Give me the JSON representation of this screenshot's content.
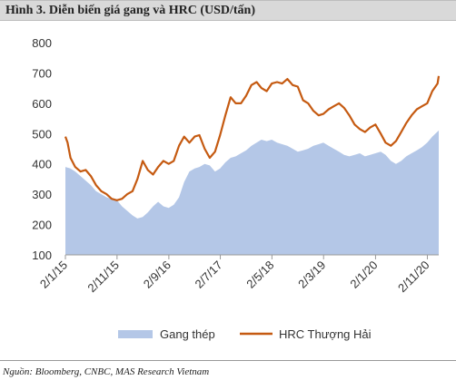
{
  "title": "Hình 3. Diễn biến giá gang và HRC (USD/tấn)",
  "source": "Nguồn: Bloomberg, CNBC, MAS Research Vietnam",
  "colors": {
    "gang": "#b4c7e7",
    "hrc": "#c55a11",
    "axis": "#999999"
  },
  "chart_data": {
    "type": "area",
    "title": "",
    "xlabel": "",
    "ylabel": "",
    "ylim": [
      100,
      800
    ],
    "yticks": [
      100,
      200,
      300,
      400,
      500,
      600,
      700,
      800
    ],
    "grid": false,
    "legend_position": "bottom",
    "x_ticks": [
      "2/1/15",
      "2/11/15",
      "2/9/16",
      "2/7/17",
      "2/5/18",
      "2/3/19",
      "2/1/20",
      "2/11/20"
    ],
    "x_tick_positions": [
      "2015-01-02",
      "2015-11-02",
      "2016-09-02",
      "2017-07-02",
      "2018-05-02",
      "2019-03-02",
      "2020-01-02",
      "2020-11-02"
    ],
    "x_range": [
      "2015-01-02",
      "2021-01-08"
    ],
    "series": [
      {
        "name": "Gang thép",
        "type": "area",
        "points": [
          [
            "2015-01-02",
            390
          ],
          [
            "2015-02-01",
            385
          ],
          [
            "2015-03-01",
            375
          ],
          [
            "2015-04-01",
            360
          ],
          [
            "2015-05-01",
            345
          ],
          [
            "2015-06-01",
            330
          ],
          [
            "2015-07-01",
            310
          ],
          [
            "2015-08-01",
            300
          ],
          [
            "2015-09-01",
            290
          ],
          [
            "2015-10-01",
            285
          ],
          [
            "2015-11-01",
            280
          ],
          [
            "2015-12-01",
            260
          ],
          [
            "2016-01-01",
            245
          ],
          [
            "2016-02-01",
            230
          ],
          [
            "2016-03-01",
            220
          ],
          [
            "2016-04-01",
            225
          ],
          [
            "2016-05-01",
            240
          ],
          [
            "2016-06-01",
            260
          ],
          [
            "2016-07-01",
            275
          ],
          [
            "2016-08-01",
            260
          ],
          [
            "2016-09-01",
            255
          ],
          [
            "2016-10-01",
            265
          ],
          [
            "2016-11-01",
            290
          ],
          [
            "2016-12-01",
            340
          ],
          [
            "2017-01-01",
            375
          ],
          [
            "2017-02-01",
            385
          ],
          [
            "2017-03-01",
            390
          ],
          [
            "2017-04-01",
            400
          ],
          [
            "2017-05-01",
            395
          ],
          [
            "2017-06-01",
            375
          ],
          [
            "2017-07-01",
            385
          ],
          [
            "2017-08-01",
            405
          ],
          [
            "2017-09-01",
            420
          ],
          [
            "2017-10-01",
            425
          ],
          [
            "2017-11-01",
            435
          ],
          [
            "2017-12-01",
            445
          ],
          [
            "2018-01-01",
            460
          ],
          [
            "2018-02-01",
            470
          ],
          [
            "2018-03-01",
            480
          ],
          [
            "2018-04-01",
            475
          ],
          [
            "2018-05-01",
            480
          ],
          [
            "2018-06-01",
            470
          ],
          [
            "2018-07-01",
            465
          ],
          [
            "2018-08-01",
            460
          ],
          [
            "2018-09-01",
            450
          ],
          [
            "2018-10-01",
            440
          ],
          [
            "2018-11-01",
            445
          ],
          [
            "2018-12-01",
            450
          ],
          [
            "2019-01-01",
            460
          ],
          [
            "2019-02-01",
            465
          ],
          [
            "2019-03-01",
            470
          ],
          [
            "2019-04-01",
            460
          ],
          [
            "2019-05-01",
            450
          ],
          [
            "2019-06-01",
            440
          ],
          [
            "2019-07-01",
            430
          ],
          [
            "2019-08-01",
            425
          ],
          [
            "2019-09-01",
            430
          ],
          [
            "2019-10-01",
            435
          ],
          [
            "2019-11-01",
            425
          ],
          [
            "2019-12-01",
            430
          ],
          [
            "2020-01-01",
            435
          ],
          [
            "2020-02-01",
            440
          ],
          [
            "2020-03-01",
            430
          ],
          [
            "2020-04-01",
            410
          ],
          [
            "2020-05-01",
            400
          ],
          [
            "2020-06-01",
            410
          ],
          [
            "2020-07-01",
            425
          ],
          [
            "2020-08-01",
            435
          ],
          [
            "2020-09-01",
            445
          ],
          [
            "2020-10-01",
            455
          ],
          [
            "2020-11-01",
            470
          ],
          [
            "2020-12-01",
            490
          ],
          [
            "2021-01-08",
            510
          ]
        ]
      },
      {
        "name": "HRC Thượng Hải",
        "type": "line",
        "points": [
          [
            "2015-01-02",
            490
          ],
          [
            "2015-01-15",
            470
          ],
          [
            "2015-02-01",
            420
          ],
          [
            "2015-03-01",
            390
          ],
          [
            "2015-04-01",
            375
          ],
          [
            "2015-05-01",
            380
          ],
          [
            "2015-06-01",
            360
          ],
          [
            "2015-07-01",
            330
          ],
          [
            "2015-08-01",
            310
          ],
          [
            "2015-09-01",
            300
          ],
          [
            "2015-10-01",
            285
          ],
          [
            "2015-11-01",
            280
          ],
          [
            "2015-12-01",
            285
          ],
          [
            "2016-01-01",
            300
          ],
          [
            "2016-02-01",
            310
          ],
          [
            "2016-03-01",
            350
          ],
          [
            "2016-04-01",
            410
          ],
          [
            "2016-05-01",
            380
          ],
          [
            "2016-06-01",
            365
          ],
          [
            "2016-07-01",
            390
          ],
          [
            "2016-08-01",
            410
          ],
          [
            "2016-09-01",
            400
          ],
          [
            "2016-10-01",
            410
          ],
          [
            "2016-11-01",
            460
          ],
          [
            "2016-12-01",
            490
          ],
          [
            "2017-01-01",
            470
          ],
          [
            "2017-02-01",
            490
          ],
          [
            "2017-03-01",
            495
          ],
          [
            "2017-04-01",
            450
          ],
          [
            "2017-05-01",
            420
          ],
          [
            "2017-06-01",
            440
          ],
          [
            "2017-07-01",
            495
          ],
          [
            "2017-08-01",
            560
          ],
          [
            "2017-09-01",
            620
          ],
          [
            "2017-10-01",
            600
          ],
          [
            "2017-11-01",
            600
          ],
          [
            "2017-12-01",
            625
          ],
          [
            "2018-01-01",
            660
          ],
          [
            "2018-02-01",
            670
          ],
          [
            "2018-03-01",
            650
          ],
          [
            "2018-04-01",
            640
          ],
          [
            "2018-05-01",
            665
          ],
          [
            "2018-06-01",
            670
          ],
          [
            "2018-07-01",
            665
          ],
          [
            "2018-08-01",
            680
          ],
          [
            "2018-09-01",
            660
          ],
          [
            "2018-10-01",
            655
          ],
          [
            "2018-11-01",
            610
          ],
          [
            "2018-12-01",
            600
          ],
          [
            "2019-01-01",
            575
          ],
          [
            "2019-02-01",
            560
          ],
          [
            "2019-03-01",
            565
          ],
          [
            "2019-04-01",
            580
          ],
          [
            "2019-05-01",
            590
          ],
          [
            "2019-06-01",
            600
          ],
          [
            "2019-07-01",
            585
          ],
          [
            "2019-08-01",
            560
          ],
          [
            "2019-09-01",
            530
          ],
          [
            "2019-10-01",
            515
          ],
          [
            "2019-11-01",
            505
          ],
          [
            "2019-12-01",
            520
          ],
          [
            "2020-01-01",
            530
          ],
          [
            "2020-02-01",
            500
          ],
          [
            "2020-03-01",
            470
          ],
          [
            "2020-04-01",
            460
          ],
          [
            "2020-05-01",
            475
          ],
          [
            "2020-06-01",
            505
          ],
          [
            "2020-07-01",
            535
          ],
          [
            "2020-08-01",
            560
          ],
          [
            "2020-09-01",
            580
          ],
          [
            "2020-10-01",
            590
          ],
          [
            "2020-11-01",
            600
          ],
          [
            "2020-12-01",
            640
          ],
          [
            "2021-01-01",
            665
          ],
          [
            "2021-01-08",
            690
          ]
        ]
      }
    ]
  }
}
